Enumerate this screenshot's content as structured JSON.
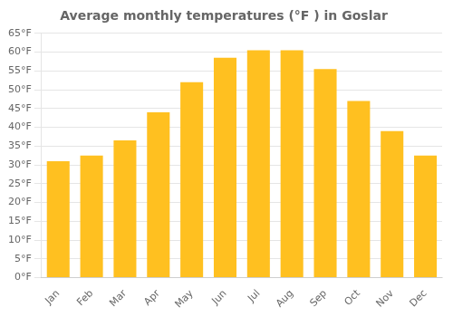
{
  "chart_data": {
    "type": "bar",
    "title": "Average monthly temperatures (°F ) in Goslar",
    "categories": [
      "Jan",
      "Feb",
      "Mar",
      "Apr",
      "May",
      "Jun",
      "Jul",
      "Aug",
      "Sep",
      "Oct",
      "Nov",
      "Dec"
    ],
    "values": [
      31,
      32.5,
      36.5,
      44,
      52,
      58.5,
      60.5,
      60.5,
      55.5,
      47,
      39,
      32.5
    ],
    "color": "#FFC020",
    "ylim": [
      0,
      65
    ],
    "yticks": [
      {
        "value": 0,
        "label": "0°F"
      },
      {
        "value": 5,
        "label": "5°F"
      },
      {
        "value": 10,
        "label": "10°F"
      },
      {
        "value": 15,
        "label": "15°F"
      },
      {
        "value": 20,
        "label": "20°F"
      },
      {
        "value": 25,
        "label": "25°F"
      },
      {
        "value": 30,
        "label": "30°F"
      },
      {
        "value": 35,
        "label": "35°F"
      },
      {
        "value": 40,
        "label": "40°F"
      },
      {
        "value": 45,
        "label": "45°F"
      },
      {
        "value": 50,
        "label": "50°F"
      },
      {
        "value": 55,
        "label": "55°F"
      },
      {
        "value": 60,
        "label": "60°F"
      },
      {
        "value": 65,
        "label": "65°F"
      }
    ],
    "grid": true
  }
}
